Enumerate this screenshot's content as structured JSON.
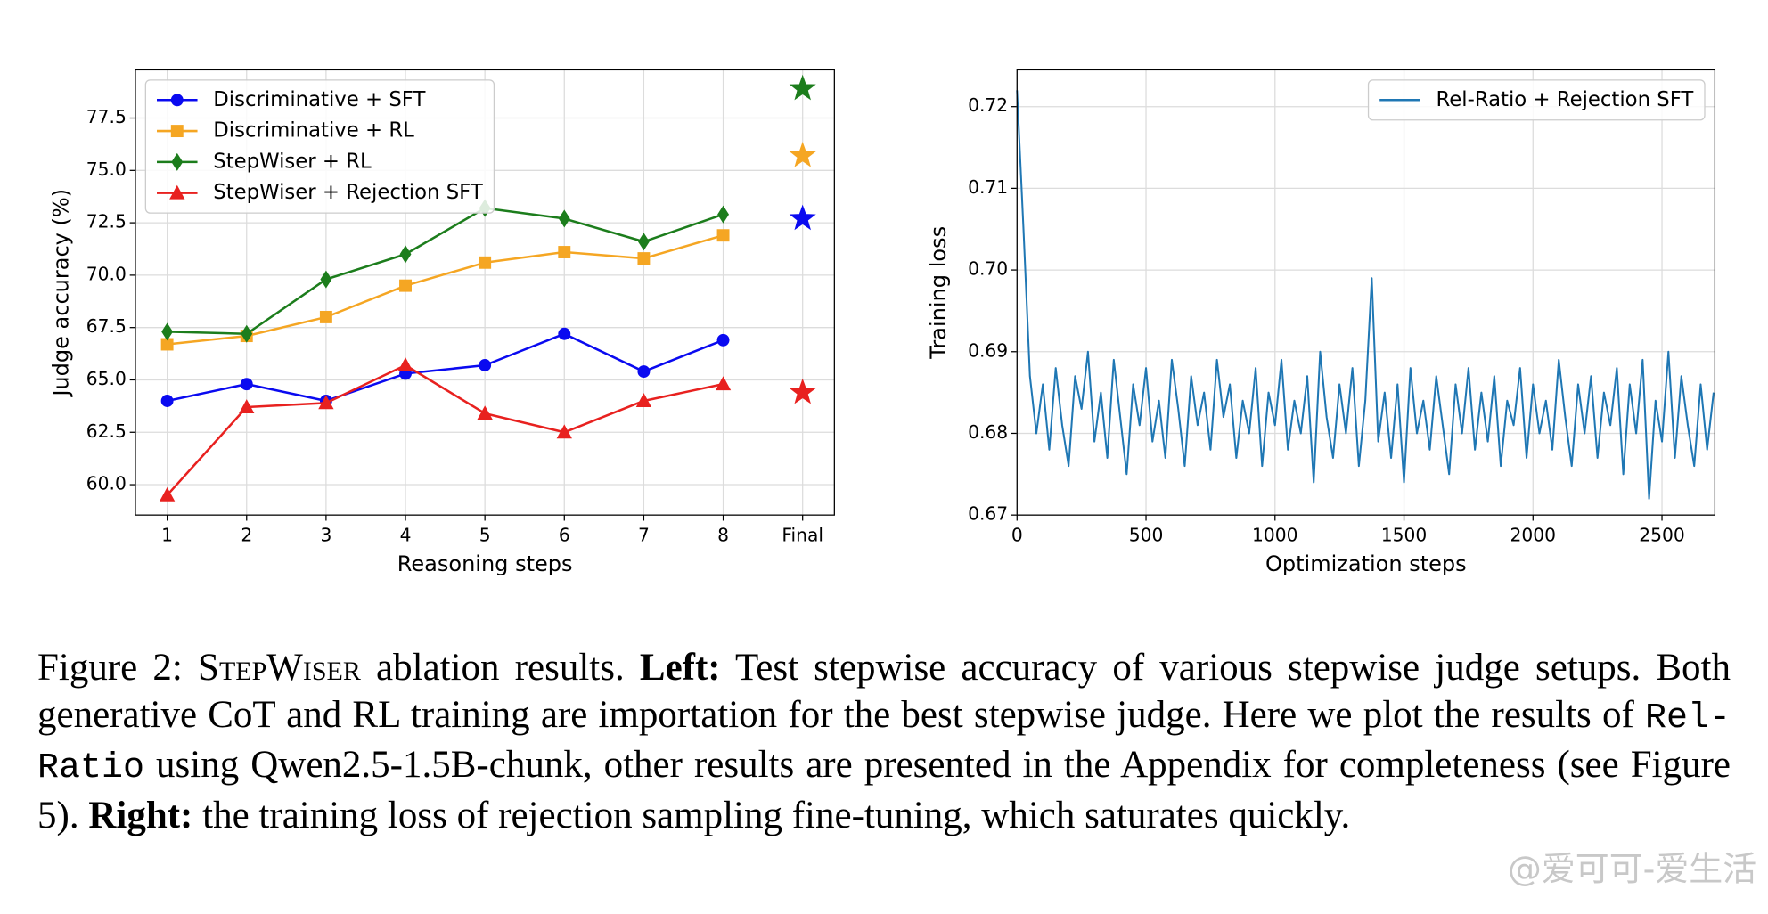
{
  "chart_data": [
    {
      "type": "line",
      "xlabel": "Reasoning steps",
      "ylabel": "Judge accuracy (%)",
      "categories": [
        "1",
        "2",
        "3",
        "4",
        "5",
        "6",
        "7",
        "8",
        "Final"
      ],
      "series": [
        {
          "name": "Discriminative + SFT",
          "color": "#0a0af0",
          "marker": "circle",
          "values": [
            64.0,
            64.8,
            64.0,
            65.3,
            65.7,
            67.2,
            65.4,
            66.9,
            72.7
          ]
        },
        {
          "name": "Discriminative + RL",
          "color": "#f5a623",
          "marker": "square",
          "values": [
            66.7,
            67.1,
            68.0,
            69.5,
            70.6,
            71.1,
            70.8,
            71.9,
            75.7
          ]
        },
        {
          "name": "StepWiser + RL",
          "color": "#1c7d1c",
          "marker": "diamond",
          "values": [
            67.3,
            67.2,
            69.8,
            71.0,
            73.2,
            72.7,
            71.6,
            72.9,
            78.9
          ]
        },
        {
          "name": "StepWiser + Rejection SFT",
          "color": "#e8211f",
          "marker": "triangle",
          "values": [
            59.5,
            63.7,
            63.9,
            65.7,
            63.4,
            62.5,
            64.0,
            64.8,
            64.4
          ]
        }
      ],
      "ylim": [
        58.55,
        79.8
      ],
      "yticks": [
        {
          "value": 60,
          "label": "60.0"
        },
        {
          "value": 62.5,
          "label": "62.5"
        },
        {
          "value": 65,
          "label": "65.0"
        },
        {
          "value": 67.5,
          "label": "67.5"
        },
        {
          "value": 70,
          "label": "70.0"
        },
        {
          "value": 72.5,
          "label": "72.5"
        },
        {
          "value": 75,
          "label": "75.0"
        },
        {
          "value": 77.5,
          "label": "77.5"
        }
      ],
      "grid": true,
      "legend": "upper left"
    },
    {
      "type": "line",
      "xlabel": "Optimization steps",
      "ylabel": "Training loss",
      "x": [
        0,
        25,
        50,
        75,
        100,
        125,
        150,
        175,
        200,
        225,
        250,
        275,
        300,
        325,
        350,
        375,
        400,
        425,
        450,
        475,
        500,
        525,
        550,
        575,
        600,
        625,
        650,
        675,
        700,
        725,
        750,
        775,
        800,
        825,
        850,
        875,
        900,
        925,
        950,
        975,
        1000,
        1025,
        1050,
        1075,
        1100,
        1125,
        1150,
        1175,
        1200,
        1225,
        1250,
        1275,
        1300,
        1325,
        1350,
        1375,
        1400,
        1425,
        1450,
        1475,
        1500,
        1525,
        1550,
        1575,
        1600,
        1625,
        1650,
        1675,
        1700,
        1725,
        1750,
        1775,
        1800,
        1825,
        1850,
        1875,
        1900,
        1925,
        1950,
        1975,
        2000,
        2025,
        2050,
        2075,
        2100,
        2125,
        2150,
        2175,
        2200,
        2225,
        2250,
        2275,
        2300,
        2325,
        2350,
        2375,
        2400,
        2425,
        2450,
        2475,
        2500,
        2525,
        2550,
        2575,
        2600,
        2625,
        2650,
        2675,
        2700
      ],
      "series": [
        {
          "name": "Rel-Ratio + Rejection SFT",
          "color": "#1f77b4",
          "values": [
            0.722,
            0.705,
            0.687,
            0.68,
            0.686,
            0.678,
            0.688,
            0.681,
            0.676,
            0.687,
            0.683,
            0.69,
            0.679,
            0.685,
            0.677,
            0.689,
            0.682,
            0.675,
            0.686,
            0.681,
            0.688,
            0.679,
            0.684,
            0.677,
            0.689,
            0.683,
            0.676,
            0.687,
            0.681,
            0.685,
            0.678,
            0.689,
            0.682,
            0.686,
            0.677,
            0.684,
            0.68,
            0.688,
            0.676,
            0.685,
            0.681,
            0.689,
            0.678,
            0.684,
            0.68,
            0.687,
            0.674,
            0.69,
            0.682,
            0.677,
            0.686,
            0.68,
            0.688,
            0.676,
            0.684,
            0.699,
            0.679,
            0.685,
            0.677,
            0.686,
            0.674,
            0.688,
            0.68,
            0.684,
            0.678,
            0.687,
            0.681,
            0.675,
            0.686,
            0.68,
            0.688,
            0.678,
            0.685,
            0.679,
            0.687,
            0.676,
            0.684,
            0.681,
            0.688,
            0.677,
            0.686,
            0.68,
            0.684,
            0.678,
            0.689,
            0.682,
            0.676,
            0.686,
            0.68,
            0.687,
            0.677,
            0.685,
            0.681,
            0.688,
            0.675,
            0.686,
            0.68,
            0.689,
            0.672,
            0.684,
            0.679,
            0.69,
            0.677,
            0.687,
            0.681,
            0.676,
            0.686,
            0.678,
            0.685
          ]
        }
      ],
      "xlim": [
        0,
        2705
      ],
      "xticks": [
        0,
        500,
        1000,
        1500,
        2000,
        2500
      ],
      "ylim": [
        0.67,
        0.7245
      ],
      "yticks": [
        0.67,
        0.68,
        0.69,
        {
          "value": 0.7,
          "label": "0.70"
        },
        0.71,
        0.72
      ],
      "grid": true,
      "legend": "upper right"
    }
  ],
  "caption": [
    {
      "text": "Figure 2: "
    },
    {
      "text": "StepWiser",
      "style": "smallcaps"
    },
    {
      "text": " ablation results. "
    },
    {
      "text": "Left:",
      "style": "bold"
    },
    {
      "text": " Test stepwise accuracy of various stepwise judge setups. Both generative CoT and RL training are importation for the best stepwise judge. Here we plot the results of "
    },
    {
      "text": "Rel-Ratio",
      "style": "mono"
    },
    {
      "text": " using Qwen2.5-1.5B-chunk, other results are presented in the Appendix for completeness (see Figure 5). "
    },
    {
      "text": "Right:",
      "style": "bold"
    },
    {
      "text": " the training loss of rejection sampling fine-tuning, which saturates quickly."
    }
  ],
  "watermark": "@爱可可-爱生活"
}
